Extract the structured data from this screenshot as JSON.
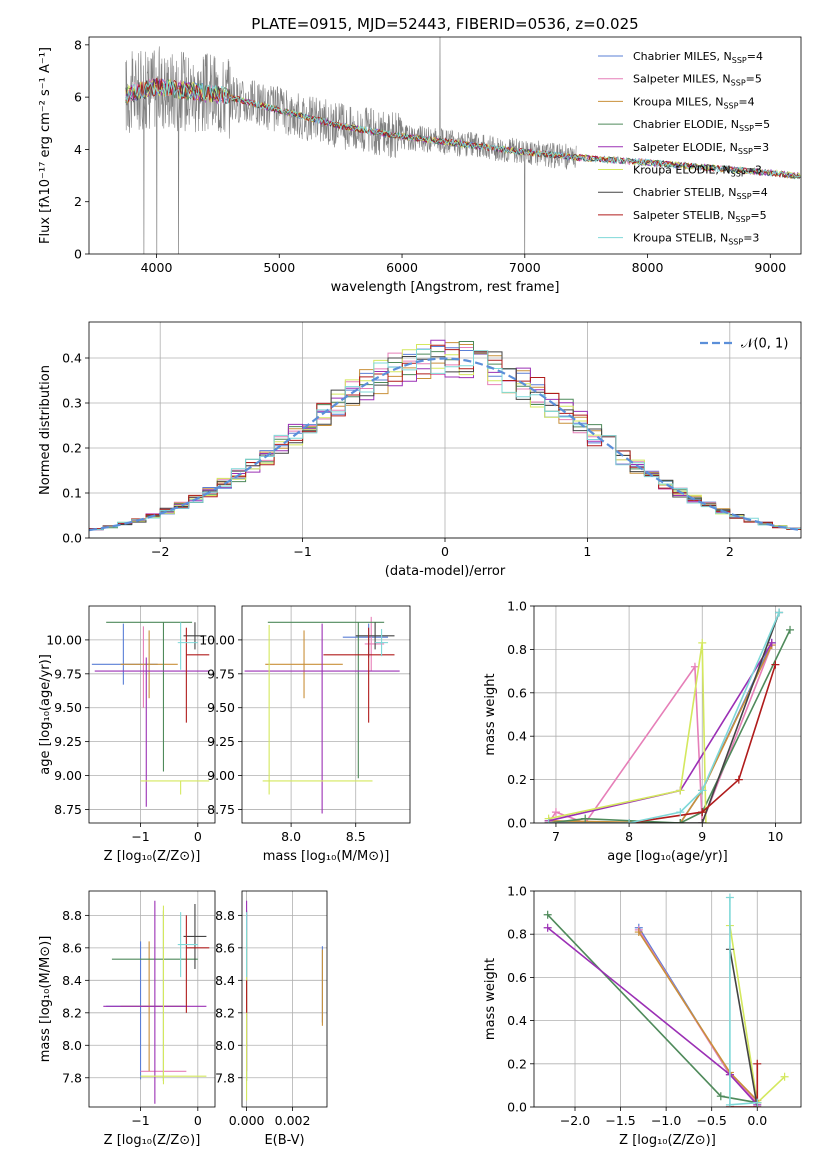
{
  "chart_data": [
    {
      "type": "line",
      "title": "PLATE=0915, MJD=52443, FIBERID=0536, z=0.025",
      "xlabel": "wavelength [Angstrom, rest frame]",
      "ylabel": "Flux [fλ10⁻¹⁷ erg cm⁻² s⁻¹ A⁻¹]",
      "xlim": [
        3450,
        9250
      ],
      "ylim": [
        0,
        8.3
      ],
      "xticks": [
        4000,
        5000,
        6000,
        7000,
        8000,
        9000
      ],
      "yticks": [
        0,
        2,
        4,
        6,
        8
      ],
      "legend_position": "upper right",
      "data_color": "#808080",
      "data_range": [
        3750,
        7420
      ],
      "model_trend": {
        "x": [
          3750,
          4000,
          4500,
          5000,
          5500,
          6000,
          6500,
          7000,
          7400,
          8000,
          8500,
          9000,
          9200
        ],
        "y": [
          6.1,
          6.4,
          6.1,
          5.5,
          4.9,
          4.5,
          4.2,
          3.9,
          3.7,
          3.5,
          3.3,
          3.1,
          3.0
        ]
      },
      "series": [
        {
          "name": "Chabrier MILES, N",
          "sub": "SSP",
          "eq": "=4",
          "color": "#5a7fd6"
        },
        {
          "name": "Salpeter MILES, N",
          "sub": "SSP",
          "eq": "=5",
          "color": "#e67fb8"
        },
        {
          "name": "Kroupa MILES, N",
          "sub": "SSP",
          "eq": "=4",
          "color": "#c9903a"
        },
        {
          "name": "Chabrier ELODIE, N",
          "sub": "SSP",
          "eq": "=5",
          "color": "#4f8a5b"
        },
        {
          "name": "Salpeter ELODIE, N",
          "sub": "SSP",
          "eq": "=3",
          "color": "#9b30b5"
        },
        {
          "name": "Kroupa ELODIE, N",
          "sub": "SSP",
          "eq": "=3",
          "color": "#d4e85e"
        },
        {
          "name": "Chabrier STELIB, N",
          "sub": "SSP",
          "eq": "=4",
          "color": "#444444"
        },
        {
          "name": "Salpeter STELIB, N",
          "sub": "SSP",
          "eq": "=5",
          "color": "#b01c1c"
        },
        {
          "name": "Kroupa STELIB, N",
          "sub": "SSP",
          "eq": "=3",
          "color": "#7fd8d8"
        }
      ]
    },
    {
      "type": "line",
      "xlabel": "(data-model)/error",
      "ylabel": "Normed distribution",
      "xlim": [
        -2.5,
        2.5
      ],
      "ylim": [
        0,
        0.48
      ],
      "xticks": [
        -2,
        -1,
        0,
        1,
        2
      ],
      "yticks": [
        0.0,
        0.1,
        0.2,
        0.3,
        0.4
      ],
      "legend": "𝒩(0, 1)",
      "legend_position": "upper right",
      "normal_curve_color": "#5b8fd9",
      "bin_width": 0.1,
      "grid": true
    },
    {
      "type": "scatter",
      "xlabel": "Z [log₁₀(Z/Z⊙)]",
      "ylabel": "age  [log₁₀(age/yr)]",
      "xlim": [
        -1.9,
        0.3
      ],
      "ylim": [
        8.65,
        10.25
      ],
      "xticks": [
        -1,
        0
      ],
      "yticks": [
        8.75,
        9.0,
        9.25,
        9.5,
        9.75,
        10.0
      ],
      "points": [
        {
          "series": 0,
          "x": -1.3,
          "y": 9.82,
          "xerr": [
            0.55,
            0.6
          ],
          "yerr": [
            0.15,
            0.3
          ]
        },
        {
          "series": 1,
          "x": -0.95,
          "y": 9.8,
          "xerr": [
            0.0,
            0.0
          ],
          "yerr": [
            0.3,
            0.3
          ]
        },
        {
          "series": 2,
          "x": -0.85,
          "y": 9.82,
          "xerr": [
            0.5,
            0.5
          ],
          "yerr": [
            0.25,
            0.25
          ]
        },
        {
          "series": 3,
          "x": -0.6,
          "y": 10.13,
          "xerr": [
            1.0,
            0.5
          ],
          "yerr": [
            1.1,
            0.0
          ]
        },
        {
          "series": 4,
          "x": -0.9,
          "y": 9.77,
          "xerr": [
            0.9,
            1.1
          ],
          "yerr": [
            1.0,
            0.1
          ]
        },
        {
          "series": 5,
          "x": -0.3,
          "y": 8.96,
          "xerr": [
            0.7,
            0.5
          ],
          "yerr": [
            0.1,
            0.0
          ]
        },
        {
          "series": 6,
          "x": -0.05,
          "y": 10.03,
          "xerr": [
            0.2,
            0.2
          ],
          "yerr": [
            0.1,
            0.1
          ]
        },
        {
          "series": 7,
          "x": -0.2,
          "y": 9.89,
          "xerr": [
            0.0,
            0.4
          ],
          "yerr": [
            0.5,
            0.2
          ]
        },
        {
          "series": 8,
          "x": -0.3,
          "y": 9.98,
          "xerr": [
            0.05,
            0.3
          ],
          "yerr": [
            0.2,
            0.15
          ]
        }
      ]
    },
    {
      "type": "scatter",
      "xlabel": "mass [log₁₀(M/M⊙)]",
      "xlim": [
        7.62,
        8.92
      ],
      "ylim": [
        8.65,
        10.25
      ],
      "xticks": [
        8.0,
        8.5
      ],
      "yticks": [
        8.75,
        9.0,
        9.25,
        9.5,
        9.75,
        10.0
      ],
      "points": [
        {
          "series": 0,
          "x": 8.6,
          "y": 10.02,
          "xerr": [
            0.2,
            0.15
          ],
          "yerr": [
            0.15,
            0.1
          ]
        },
        {
          "series": 1,
          "x": 8.62,
          "y": 9.97,
          "xerr": [
            0.05,
            0.1
          ],
          "yerr": [
            0.2,
            0.2
          ]
        },
        {
          "series": 2,
          "x": 8.1,
          "y": 9.82,
          "xerr": [
            0.3,
            0.3
          ],
          "yerr": [
            0.25,
            0.25
          ]
        },
        {
          "series": 3,
          "x": 8.52,
          "y": 10.13,
          "xerr": [
            0.7,
            0.2
          ],
          "yerr": [
            1.15,
            0.0
          ]
        },
        {
          "series": 4,
          "x": 8.24,
          "y": 9.77,
          "xerr": [
            0.6,
            0.6
          ],
          "yerr": [
            1.05,
            0.35
          ]
        },
        {
          "series": 5,
          "x": 7.83,
          "y": 8.96,
          "xerr": [
            0.05,
            0.8
          ],
          "yerr": [
            0.1,
            1.15
          ]
        },
        {
          "series": 6,
          "x": 8.65,
          "y": 10.03,
          "xerr": [
            0.15,
            0.15
          ],
          "yerr": [
            0.1,
            0.1
          ]
        },
        {
          "series": 7,
          "x": 8.6,
          "y": 9.89,
          "xerr": [
            0.35,
            0.2
          ],
          "yerr": [
            0.5,
            0.2
          ]
        },
        {
          "series": 8,
          "x": 8.7,
          "y": 9.98,
          "xerr": [
            0.05,
            0.05
          ],
          "yerr": [
            0.1,
            0.1
          ]
        }
      ]
    },
    {
      "type": "line",
      "xlabel": "age  [log₁₀(age/yr)]",
      "ylabel": "mass weight",
      "xlim": [
        6.7,
        10.35
      ],
      "ylim": [
        0,
        1.0
      ],
      "xticks": [
        7,
        8,
        9,
        10
      ],
      "yticks": [
        0.0,
        0.2,
        0.4,
        0.6,
        0.8,
        1.0
      ],
      "lines": [
        {
          "series": 0,
          "x": [
            6.9,
            8.7,
            9.0,
            9.95
          ],
          "y": [
            0.0,
            0.0,
            0.15,
            0.83
          ]
        },
        {
          "series": 1,
          "x": [
            6.9,
            7.0,
            7.4,
            8.9,
            9.0,
            9.95
          ],
          "y": [
            0.0,
            0.05,
            0.0,
            0.72,
            0.0,
            0.82
          ]
        },
        {
          "series": 2,
          "x": [
            6.9,
            8.7,
            9.0,
            9.95
          ],
          "y": [
            0.01,
            0.0,
            0.15,
            0.82
          ]
        },
        {
          "series": 3,
          "x": [
            6.9,
            7.4,
            8.7,
            9.0,
            10.2
          ],
          "y": [
            0.0,
            0.02,
            0.0,
            0.05,
            0.89
          ]
        },
        {
          "series": 4,
          "x": [
            6.9,
            8.7,
            9.95
          ],
          "y": [
            0.01,
            0.15,
            0.83
          ]
        },
        {
          "series": 5,
          "x": [
            6.9,
            8.7,
            9.0,
            9.05
          ],
          "y": [
            0.02,
            0.15,
            0.83,
            0.0
          ]
        },
        {
          "series": 6,
          "x": [
            6.9,
            8.0,
            9.0,
            10.05
          ],
          "y": [
            0.0,
            0.0,
            0.0,
            0.97
          ]
        },
        {
          "series": 7,
          "x": [
            6.9,
            8.0,
            9.0,
            9.5,
            10.0
          ],
          "y": [
            0.0,
            0.0,
            0.05,
            0.2,
            0.73
          ]
        },
        {
          "series": 8,
          "x": [
            6.9,
            8.0,
            8.7,
            9.0,
            10.05
          ],
          "y": [
            0.0,
            0.0,
            0.05,
            0.15,
            0.97
          ]
        }
      ]
    },
    {
      "type": "scatter",
      "xlabel": "Z [log₁₀(Z/Z⊙)]",
      "ylabel": "mass [log₁₀(M/M⊙)]",
      "xlim": [
        -1.9,
        0.3
      ],
      "ylim": [
        7.62,
        8.95
      ],
      "xticks": [
        -1,
        0
      ],
      "yticks": [
        7.8,
        8.0,
        8.2,
        8.4,
        8.6,
        8.8
      ],
      "points": [
        {
          "series": 0,
          "x": -1.0,
          "y": 8.24,
          "xerr": [
            0.6,
            0.8
          ],
          "yerr": [
            0.45,
            0.4
          ]
        },
        {
          "series": 1,
          "x": -0.8,
          "y": 7.84,
          "xerr": [
            0.2,
            0.6
          ],
          "yerr": [
            0.0,
            0.0
          ]
        },
        {
          "series": 2,
          "x": -0.85,
          "y": 8.24,
          "xerr": [
            0.5,
            0.6
          ],
          "yerr": [
            0.4,
            0.4
          ]
        },
        {
          "series": 3,
          "x": -0.6,
          "y": 8.53,
          "xerr": [
            0.9,
            0.6
          ],
          "yerr": [
            0.75,
            0.3
          ]
        },
        {
          "series": 4,
          "x": -0.75,
          "y": 8.24,
          "xerr": [
            0.9,
            0.9
          ],
          "yerr": [
            0.6,
            0.65
          ]
        },
        {
          "series": 5,
          "x": -0.6,
          "y": 7.81,
          "xerr": [
            0.4,
            0.75
          ],
          "yerr": [
            0.05,
            1.05
          ]
        },
        {
          "series": 6,
          "x": -0.05,
          "y": 8.67,
          "xerr": [
            0.2,
            0.2
          ],
          "yerr": [
            0.2,
            0.2
          ]
        },
        {
          "series": 7,
          "x": -0.2,
          "y": 8.6,
          "xerr": [
            0.0,
            0.4
          ],
          "yerr": [
            0.4,
            0.2
          ]
        },
        {
          "series": 8,
          "x": -0.3,
          "y": 8.62,
          "xerr": [
            0.05,
            0.3
          ],
          "yerr": [
            0.2,
            0.2
          ]
        }
      ]
    },
    {
      "type": "scatter",
      "xlabel": "E(B-V)",
      "xlim": [
        -0.0002,
        0.0035
      ],
      "ylim": [
        7.62,
        8.95
      ],
      "xticks": [
        0.0,
        0.002
      ],
      "yticks": [
        7.8,
        8.0,
        8.2,
        8.4,
        8.6,
        8.8
      ],
      "points": [
        {
          "series": 0,
          "x": 0.0033,
          "y": 8.24,
          "xerr": [
            0,
            0
          ],
          "yerr": [
            0.1,
            0.37
          ]
        },
        {
          "series": 2,
          "x": 0.0033,
          "y": 8.24,
          "xerr": [
            0,
            0
          ],
          "yerr": [
            0.12,
            0.35
          ]
        },
        {
          "series": 3,
          "x": 0.0,
          "y": 8.53,
          "xerr": [
            0,
            0
          ],
          "yerr": [
            0.75,
            0.3
          ]
        },
        {
          "series": 4,
          "x": 0.0,
          "y": 8.24,
          "xerr": [
            0,
            0
          ],
          "yerr": [
            0.4,
            0.65
          ]
        },
        {
          "series": 5,
          "x": 0.0,
          "y": 7.81,
          "xerr": [
            0,
            0
          ],
          "yerr": [
            0.15,
            0.9
          ]
        },
        {
          "series": 7,
          "x": 0.0,
          "y": 8.3,
          "xerr": [
            0,
            0
          ],
          "yerr": [
            0.1,
            0.1
          ]
        },
        {
          "series": 8,
          "x": 0.0,
          "y": 8.62,
          "xerr": [
            0,
            0
          ],
          "yerr": [
            0.2,
            0.2
          ]
        }
      ]
    },
    {
      "type": "line",
      "xlabel": "Z [log₁₀(Z/Z⊙)]",
      "ylabel": "mass weight",
      "xlim": [
        -2.45,
        0.48
      ],
      "ylim": [
        0,
        1.0
      ],
      "xticks": [
        -2.0,
        -1.5,
        -1.0,
        -0.5,
        0.0
      ],
      "yticks": [
        0.0,
        0.2,
        0.4,
        0.6,
        0.8,
        1.0
      ],
      "lines": [
        {
          "series": 0,
          "x": [
            -1.3,
            -0.3,
            0.0
          ],
          "y": [
            0.83,
            0.15,
            0.02
          ]
        },
        {
          "series": 1,
          "x": [
            -1.3,
            -0.3,
            0.0
          ],
          "y": [
            0.82,
            0.15,
            0.02
          ]
        },
        {
          "series": 2,
          "x": [
            -1.3,
            -0.3,
            0.0
          ],
          "y": [
            0.81,
            0.16,
            0.03
          ]
        },
        {
          "series": 3,
          "x": [
            -2.3,
            -0.4,
            0.0
          ],
          "y": [
            0.89,
            0.05,
            0.02
          ]
        },
        {
          "series": 4,
          "x": [
            -2.3,
            -0.3,
            0.0
          ],
          "y": [
            0.83,
            0.15,
            0.01
          ]
        },
        {
          "series": 5,
          "x": [
            -0.3,
            0.0,
            0.3
          ],
          "y": [
            0.84,
            0.02,
            0.14
          ]
        },
        {
          "series": 6,
          "x": [
            -0.3,
            0.0
          ],
          "y": [
            0.73,
            0.0
          ]
        },
        {
          "series": 7,
          "x": [
            -0.3,
            -0.3,
            0.0,
            0.0
          ],
          "y": [
            0.0,
            0.0,
            0.0,
            0.2
          ]
        },
        {
          "series": 8,
          "x": [
            -0.3,
            -0.3,
            0.0
          ],
          "y": [
            0.97,
            0.01,
            0.02
          ]
        }
      ]
    }
  ]
}
